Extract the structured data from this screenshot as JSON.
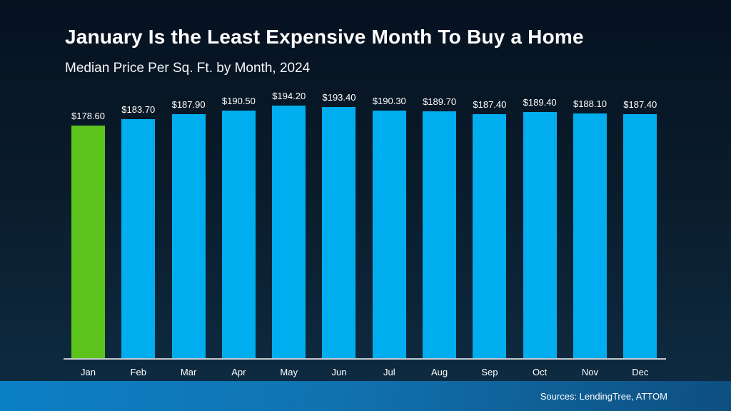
{
  "slide": {
    "title": "January Is the Least Expensive Month To Buy a Home",
    "subtitle": "Median Price Per Sq. Ft. by Month, 2024",
    "source": "Sources: LendingTree, ATTOM"
  },
  "chart_data": {
    "type": "bar",
    "title": "January Is the Least Expensive Month To Buy a Home",
    "subtitle": "Median Price Per Sq. Ft. by Month, 2024",
    "categories": [
      "Jan",
      "Feb",
      "Mar",
      "Apr",
      "May",
      "Jun",
      "Jul",
      "Aug",
      "Sep",
      "Oct",
      "Nov",
      "Dec"
    ],
    "values": [
      178.6,
      183.7,
      187.9,
      190.5,
      194.2,
      193.4,
      190.3,
      189.7,
      187.4,
      189.4,
      188.1,
      187.4
    ],
    "labels": [
      "$178.60",
      "$183.70",
      "$187.90",
      "$190.50",
      "$194.20",
      "$193.40",
      "$190.30",
      "$189.70",
      "$187.40",
      "$189.40",
      "$188.10",
      "$187.40"
    ],
    "xlabel": "",
    "ylabel": "",
    "ylim": [
      0,
      194.2
    ],
    "grid": false,
    "legend": false,
    "y_axis_visible": false,
    "data_labels": true,
    "highlight_index": 0,
    "highlight_color": "#5dc41d",
    "bar_color": "#00aeef"
  },
  "colors": {
    "background_top": "#061120",
    "background_bottom": "#103049",
    "bar_blue": "#00aeef",
    "bar_green": "#5dc41d",
    "axis_line": "#c2c9ce",
    "text": "#ffffff",
    "footer_gradient_left": "#0c80c6",
    "footer_gradient_right": "#0e4f80"
  }
}
